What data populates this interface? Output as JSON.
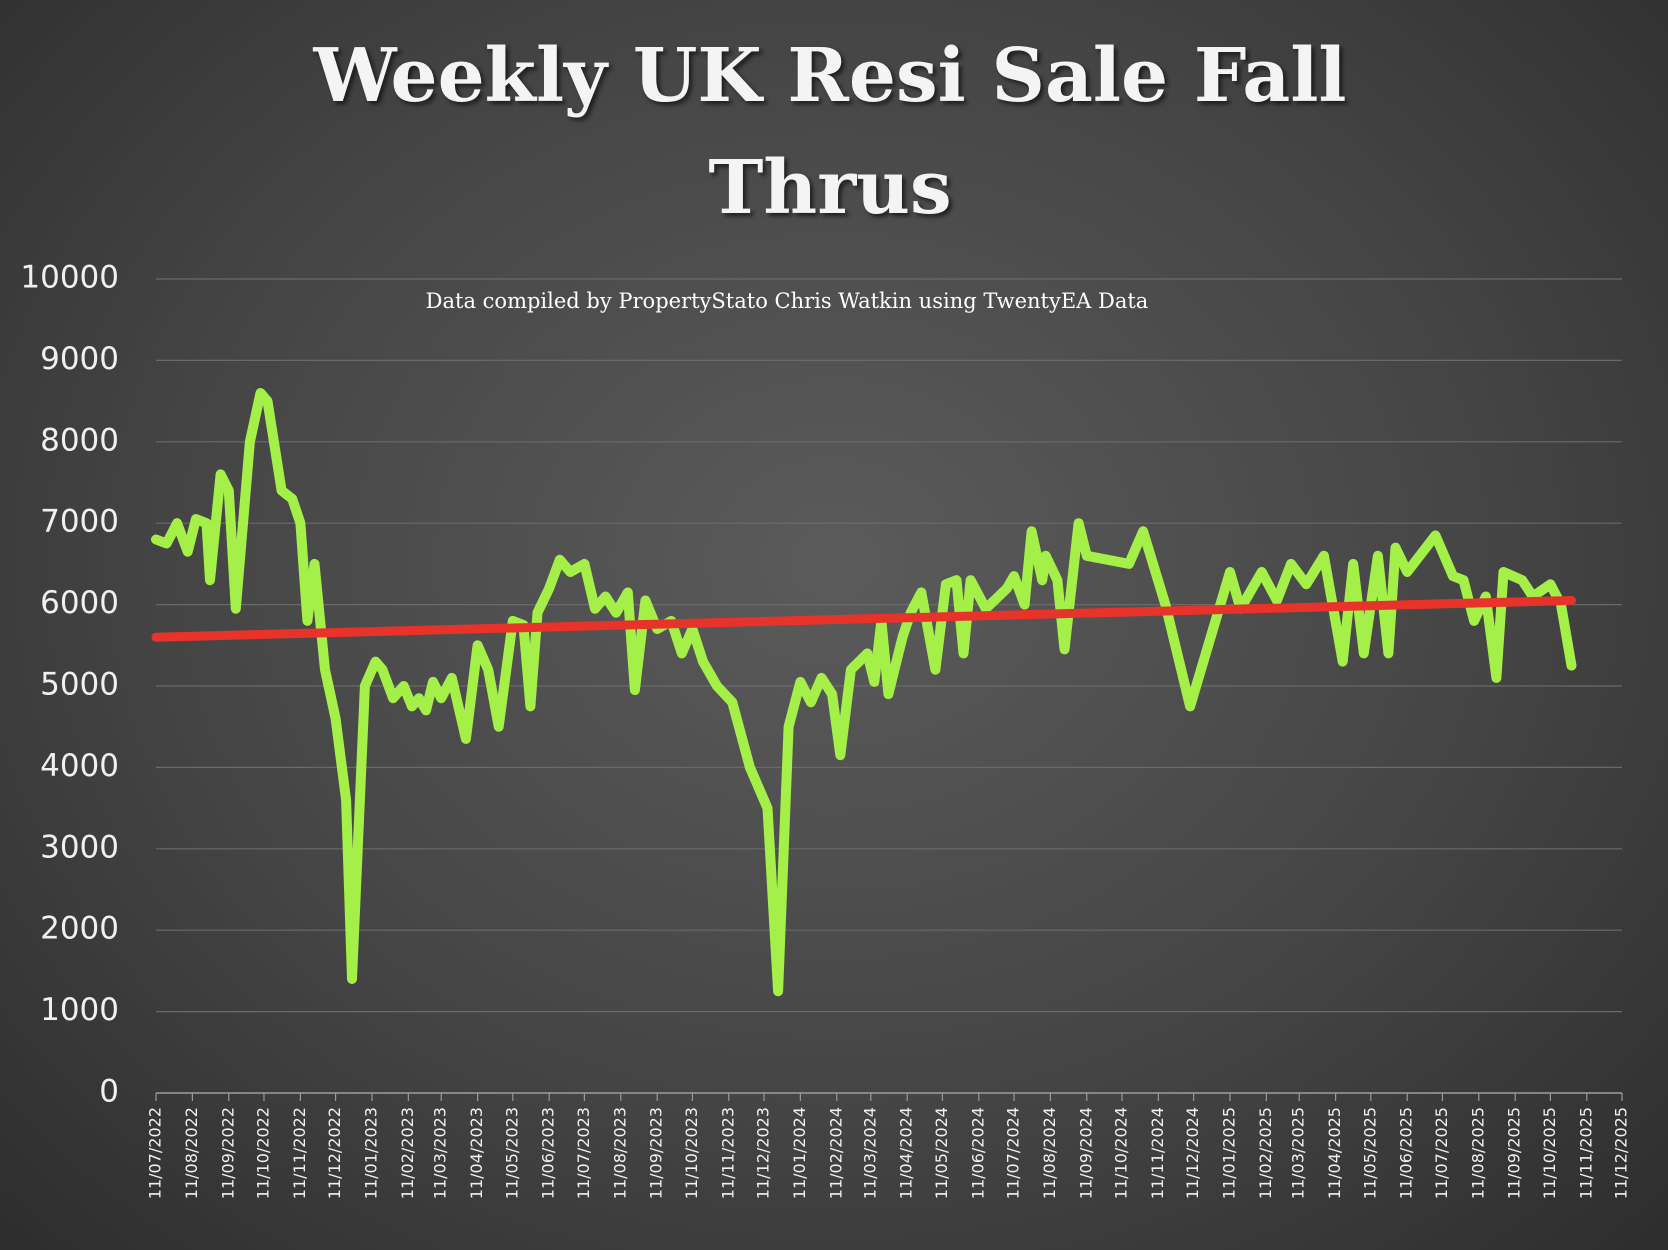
{
  "chart_data": {
    "type": "line",
    "title": "Weekly UK Resi Sale Fall Thrus",
    "subtitle": "Data compiled by PropertyStato Chris Watkin using TwentyEA Data",
    "ylim": [
      0,
      10000
    ],
    "yticks": [
      0,
      1000,
      2000,
      3000,
      4000,
      5000,
      6000,
      7000,
      8000,
      9000,
      10000
    ],
    "xlim": [
      "2022-07-11",
      "2025-12-11"
    ],
    "xticks": [
      {
        "value": "2022-07-11",
        "label": "11/07/2022"
      },
      {
        "value": "2022-08-11",
        "label": "11/08/2022"
      },
      {
        "value": "2022-09-11",
        "label": "11/09/2022"
      },
      {
        "value": "2022-10-11",
        "label": "11/10/2022"
      },
      {
        "value": "2022-11-11",
        "label": "11/11/2022"
      },
      {
        "value": "2022-12-11",
        "label": "11/12/2022"
      },
      {
        "value": "2023-01-11",
        "label": "11/01/2023"
      },
      {
        "value": "2023-02-11",
        "label": "11/02/2023"
      },
      {
        "value": "2023-03-11",
        "label": "11/03/2023"
      },
      {
        "value": "2023-04-11",
        "label": "11/04/2023"
      },
      {
        "value": "2023-05-11",
        "label": "11/05/2023"
      },
      {
        "value": "2023-06-11",
        "label": "11/06/2023"
      },
      {
        "value": "2023-07-11",
        "label": "11/07/2023"
      },
      {
        "value": "2023-08-11",
        "label": "11/08/2023"
      },
      {
        "value": "2023-09-11",
        "label": "11/09/2023"
      },
      {
        "value": "2023-10-11",
        "label": "11/10/2023"
      },
      {
        "value": "2023-11-11",
        "label": "11/11/2023"
      },
      {
        "value": "2023-12-11",
        "label": "11/12/2023"
      },
      {
        "value": "2024-01-11",
        "label": "11/01/2024"
      },
      {
        "value": "2024-02-11",
        "label": "11/02/2024"
      },
      {
        "value": "2024-03-11",
        "label": "11/03/2024"
      },
      {
        "value": "2024-04-11",
        "label": "11/04/2024"
      },
      {
        "value": "2024-05-11",
        "label": "11/05/2024"
      },
      {
        "value": "2024-06-11",
        "label": "11/06/2024"
      },
      {
        "value": "2024-07-11",
        "label": "11/07/2024"
      },
      {
        "value": "2024-08-11",
        "label": "11/08/2024"
      },
      {
        "value": "2024-09-11",
        "label": "11/09/2024"
      },
      {
        "value": "2024-10-11",
        "label": "11/10/2024"
      },
      {
        "value": "2024-11-11",
        "label": "11/11/2024"
      },
      {
        "value": "2024-12-11",
        "label": "11/12/2024"
      },
      {
        "value": "2025-01-11",
        "label": "11/01/2025"
      },
      {
        "value": "2025-02-11",
        "label": "11/02/2025"
      },
      {
        "value": "2025-03-11",
        "label": "11/03/2025"
      },
      {
        "value": "2025-04-11",
        "label": "11/04/2025"
      },
      {
        "value": "2025-05-11",
        "label": "11/05/2025"
      },
      {
        "value": "2025-06-11",
        "label": "11/06/2025"
      },
      {
        "value": "2025-07-11",
        "label": "11/07/2025"
      },
      {
        "value": "2025-08-11",
        "label": "11/08/2025"
      },
      {
        "value": "2025-09-11",
        "label": "11/09/2025"
      },
      {
        "value": "2025-10-11",
        "label": "11/10/2025"
      },
      {
        "value": "2025-11-11",
        "label": "11/11/2025"
      },
      {
        "value": "2025-12-11",
        "label": "11/12/2025"
      }
    ],
    "grid": true,
    "series": [
      {
        "color": "#a4f049",
        "x": [
          "2022-07-11",
          "2022-07-20",
          "2022-07-29",
          "2022-08-07",
          "2022-08-14",
          "2022-08-23",
          "2022-08-26",
          "2022-09-04",
          "2022-09-11",
          "2022-09-17",
          "2022-09-29",
          "2022-10-08",
          "2022-10-14",
          "2022-10-26",
          "2022-11-04",
          "2022-11-11",
          "2022-11-17",
          "2022-11-23",
          "2022-12-02",
          "2022-12-11",
          "2022-12-20",
          "2022-12-25",
          "2023-01-05",
          "2023-01-14",
          "2023-01-20",
          "2023-01-29",
          "2023-02-07",
          "2023-02-14",
          "2023-02-20",
          "2023-02-26",
          "2023-03-04",
          "2023-03-11",
          "2023-03-20",
          "2023-04-01",
          "2023-04-11",
          "2023-04-20",
          "2023-04-29",
          "2023-05-11",
          "2023-05-20",
          "2023-05-26",
          "2023-06-01",
          "2023-06-11",
          "2023-06-20",
          "2023-06-29",
          "2023-07-11",
          "2023-07-20",
          "2023-07-29",
          "2023-08-07",
          "2023-08-17",
          "2023-08-23",
          "2023-09-01",
          "2023-09-11",
          "2023-09-23",
          "2023-10-02",
          "2023-10-11",
          "2023-10-20",
          "2023-11-01",
          "2023-11-14",
          "2023-11-29",
          "2023-12-14",
          "2023-12-23",
          "2024-01-01",
          "2024-01-11",
          "2024-01-20",
          "2024-01-29",
          "2024-02-07",
          "2024-02-14",
          "2024-02-23",
          "2024-03-08",
          "2024-03-14",
          "2024-03-20",
          "2024-03-26",
          "2024-04-07",
          "2024-04-14",
          "2024-04-23",
          "2024-05-05",
          "2024-05-14",
          "2024-05-23",
          "2024-05-29",
          "2024-06-04",
          "2024-06-17",
          "2024-07-05",
          "2024-07-11",
          "2024-07-20",
          "2024-07-26",
          "2024-08-04",
          "2024-08-07",
          "2024-08-17",
          "2024-08-23",
          "2024-09-04",
          "2024-09-11",
          "2024-10-17",
          "2024-10-29",
          "2024-11-17",
          "2024-12-08",
          "2025-01-11",
          "2025-01-20",
          "2025-02-07",
          "2025-02-20",
          "2025-03-04",
          "2025-03-17",
          "2025-04-01",
          "2025-04-17",
          "2025-04-26",
          "2025-05-05",
          "2025-05-17",
          "2025-05-26",
          "2025-06-01",
          "2025-06-11",
          "2025-07-05",
          "2025-07-20",
          "2025-07-29",
          "2025-08-07",
          "2025-08-17",
          "2025-08-26",
          "2025-09-01",
          "2025-09-17",
          "2025-09-26",
          "2025-10-11",
          "2025-10-20",
          "2025-10-29"
        ],
        "values": [
          6800,
          6750,
          7000,
          6650,
          7050,
          7000,
          6300,
          7600,
          7400,
          5950,
          8000,
          8600,
          8500,
          7400,
          7300,
          7000,
          5800,
          6500,
          5200,
          4600,
          3600,
          1400,
          5000,
          5300,
          5200,
          4850,
          5000,
          4750,
          4850,
          4700,
          5050,
          4850,
          5100,
          4350,
          5500,
          5200,
          4500,
          5800,
          5750,
          4750,
          5900,
          6200,
          6550,
          6400,
          6500,
          5950,
          6100,
          5900,
          6150,
          4950,
          6050,
          5700,
          5800,
          5400,
          5700,
          5300,
          5000,
          4800,
          4000,
          3500,
          1250,
          4500,
          5050,
          4800,
          5100,
          4900,
          4150,
          5200,
          5400,
          5050,
          5800,
          4900,
          5600,
          5900,
          6150,
          5200,
          6250,
          6300,
          5400,
          6300,
          5950,
          6200,
          6350,
          6000,
          6900,
          6300,
          6600,
          6300,
          5450,
          7000,
          6600,
          6500,
          6900,
          6000,
          4750,
          6400,
          5950,
          6400,
          6050,
          6500,
          6250,
          6600,
          5300,
          6500,
          5400,
          6600,
          5400,
          6700,
          6400,
          6850,
          6350,
          6300,
          5800,
          6100,
          5100,
          6400,
          6300,
          6100,
          6250,
          6000,
          5250
        ]
      },
      {
        "color": "#e8332a",
        "x": [
          "2022-07-11",
          "2025-10-29"
        ],
        "values": [
          5600,
          6050
        ]
      }
    ]
  }
}
